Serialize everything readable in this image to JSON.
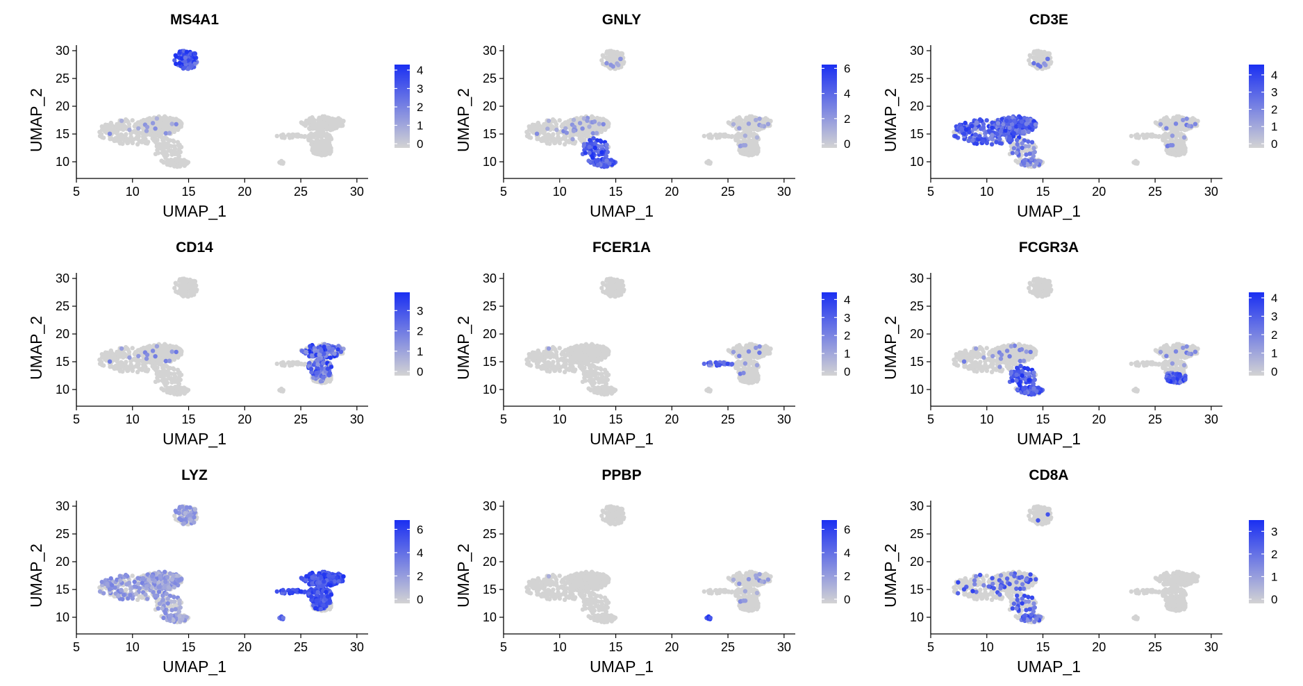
{
  "figure": {
    "panels": [
      {
        "title": "MS4A1",
        "legend_ticks": [
          0,
          1,
          2,
          3,
          4
        ],
        "legend_max": 4.3,
        "hot": [
          {
            "cluster": "B",
            "frac": 0.95,
            "lo": 0.5,
            "hi": 1.0
          },
          {
            "cluster": "T",
            "frac": 0.03,
            "lo": 0.2,
            "hi": 0.5
          }
        ]
      },
      {
        "title": "GNLY",
        "legend_ticks": [
          0,
          2,
          4,
          6
        ],
        "legend_max": 6.3,
        "hot": [
          {
            "cluster": "NK",
            "frac": 0.9,
            "lo": 0.5,
            "hi": 1.0
          },
          {
            "cluster": "T",
            "frac": 0.06,
            "lo": 0.2,
            "hi": 0.5
          },
          {
            "cluster": "B",
            "frac": 0.04,
            "lo": 0.2,
            "hi": 0.4
          },
          {
            "cluster": "M",
            "frac": 0.05,
            "lo": 0.2,
            "hi": 0.4
          }
        ]
      },
      {
        "title": "CD3E",
        "legend_ticks": [
          0,
          1,
          2,
          3,
          4
        ],
        "legend_max": 4.6,
        "hot": [
          {
            "cluster": "T",
            "frac": 0.85,
            "lo": 0.4,
            "hi": 0.95
          },
          {
            "cluster": "NK",
            "frac": 0.3,
            "lo": 0.3,
            "hi": 0.7
          },
          {
            "cluster": "M",
            "frac": 0.05,
            "lo": 0.3,
            "hi": 0.6
          },
          {
            "cluster": "B",
            "frac": 0.05,
            "lo": 0.3,
            "hi": 0.6
          }
        ]
      },
      {
        "title": "CD14",
        "legend_ticks": [
          0,
          1,
          2,
          3
        ],
        "legend_max": 3.9,
        "hot": [
          {
            "cluster": "M",
            "frac": 0.6,
            "lo": 0.3,
            "hi": 1.0
          },
          {
            "cluster": "T",
            "frac": 0.03,
            "lo": 0.3,
            "hi": 0.6
          }
        ]
      },
      {
        "title": "FCER1A",
        "legend_ticks": [
          0,
          1,
          2,
          3,
          4
        ],
        "legend_max": 4.4,
        "hot": [
          {
            "cluster": "DC",
            "frac": 0.8,
            "lo": 0.4,
            "hi": 0.9
          },
          {
            "cluster": "M",
            "frac": 0.03,
            "lo": 0.3,
            "hi": 0.6
          },
          {
            "cluster": "T",
            "frac": 0.01,
            "lo": 0.3,
            "hi": 0.6
          }
        ]
      },
      {
        "title": "FCGR3A",
        "legend_ticks": [
          0,
          1,
          2,
          3,
          4
        ],
        "legend_max": 4.3,
        "hot": [
          {
            "cluster": "NK",
            "frac": 0.85,
            "lo": 0.5,
            "hi": 1.0
          },
          {
            "cluster": "MF",
            "frac": 0.9,
            "lo": 0.5,
            "hi": 1.0
          },
          {
            "cluster": "T",
            "frac": 0.04,
            "lo": 0.3,
            "hi": 0.6
          },
          {
            "cluster": "M",
            "frac": 0.05,
            "lo": 0.3,
            "hi": 0.6
          }
        ]
      },
      {
        "title": "LYZ",
        "legend_ticks": [
          0,
          2,
          4,
          6
        ],
        "legend_max": 6.8,
        "hot": [
          {
            "cluster": "M",
            "frac": 1.0,
            "lo": 0.6,
            "hi": 1.0
          },
          {
            "cluster": "DC",
            "frac": 1.0,
            "lo": 0.6,
            "hi": 1.0
          },
          {
            "cluster": "T",
            "frac": 0.5,
            "lo": 0.15,
            "hi": 0.5
          },
          {
            "cluster": "NK",
            "frac": 0.4,
            "lo": 0.15,
            "hi": 0.45
          },
          {
            "cluster": "B",
            "frac": 0.5,
            "lo": 0.15,
            "hi": 0.45
          },
          {
            "cluster": "P",
            "frac": 1.0,
            "lo": 0.5,
            "hi": 0.8
          }
        ]
      },
      {
        "title": "PPBP",
        "legend_ticks": [
          0,
          2,
          4,
          6
        ],
        "legend_max": 6.8,
        "hot": [
          {
            "cluster": "P",
            "frac": 1.0,
            "lo": 0.7,
            "hi": 1.0
          },
          {
            "cluster": "M",
            "frac": 0.06,
            "lo": 0.2,
            "hi": 0.5
          },
          {
            "cluster": "T",
            "frac": 0.005,
            "lo": 0.2,
            "hi": 0.5
          }
        ]
      },
      {
        "title": "CD8A",
        "legend_ticks": [
          0,
          1,
          2,
          3
        ],
        "legend_max": 3.5,
        "hot": [
          {
            "cluster": "T",
            "frac": 0.12,
            "lo": 0.4,
            "hi": 0.9
          },
          {
            "cluster": "NK",
            "frac": 0.3,
            "lo": 0.4,
            "hi": 0.9
          },
          {
            "cluster": "B",
            "frac": 0.02,
            "lo": 0.4,
            "hi": 0.8
          }
        ]
      }
    ],
    "x_label": "UMAP_1",
    "y_label": "UMAP_2"
  },
  "chart_data": {
    "type": "scatter",
    "xlim": [
      5,
      31
    ],
    "ylim": [
      7,
      31
    ],
    "x_ticks": [
      5,
      10,
      15,
      20,
      25,
      30
    ],
    "y_ticks": [
      10,
      15,
      20,
      25,
      30
    ],
    "grid": false,
    "legend_placement": "right",
    "color_low": "#d3d3d3",
    "color_high": "#1a2ff2",
    "clusters": [
      {
        "id": "T",
        "n": 420,
        "ellipses": [
          [
            10.2,
            15.4,
            3.3,
            2.3
          ],
          [
            12.6,
            16.6,
            1.8,
            1.6
          ]
        ]
      },
      {
        "id": "NK",
        "n": 160,
        "ellipses": [
          [
            13.2,
            12.0,
            1.2,
            2.3
          ],
          [
            14.0,
            9.8,
            1.0,
            0.7
          ]
        ]
      },
      {
        "id": "B",
        "n": 90,
        "ellipses": [
          [
            14.8,
            28.4,
            1.1,
            1.7
          ]
        ]
      },
      {
        "id": "M",
        "n": 260,
        "ellipses": [
          [
            27.0,
            16.9,
            2.0,
            1.3
          ],
          [
            26.7,
            14.0,
            1.1,
            2.6
          ]
        ]
      },
      {
        "id": "MF",
        "n": 60,
        "ellipses": [
          [
            26.9,
            12.0,
            1.0,
            0.9
          ]
        ]
      },
      {
        "id": "DC",
        "n": 30,
        "ellipses": [
          [
            24.1,
            14.6,
            1.4,
            0.35
          ]
        ]
      },
      {
        "id": "P",
        "n": 8,
        "ellipses": [
          [
            23.3,
            9.9,
            0.25,
            0.25
          ]
        ]
      }
    ]
  }
}
